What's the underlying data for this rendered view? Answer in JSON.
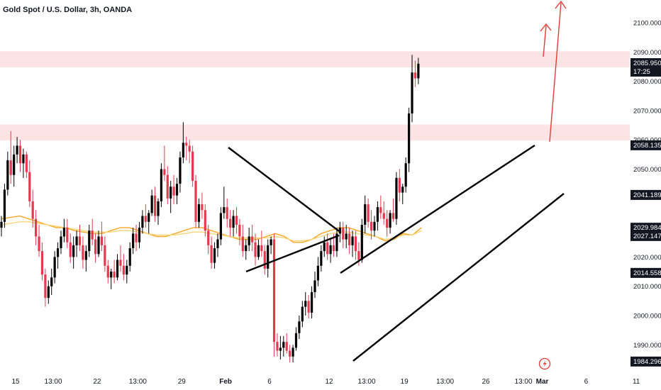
{
  "header": {
    "title": "Gold Spot / U.S. Dollar, 3h, OANDA"
  },
  "chart_data": {
    "type": "candlestick",
    "title": "Gold Spot / U.S. Dollar, 3h, OANDA",
    "ylim": [
      1982,
      2110
    ],
    "y_ticks": [
      {
        "label": "2100.000",
        "value": 2100
      },
      {
        "label": "2090.000",
        "value": 2090
      },
      {
        "label": "2080.000",
        "value": 2080
      },
      {
        "label": "2070.000",
        "value": 2070
      },
      {
        "label": "2060.000",
        "value": 2060
      },
      {
        "label": "2050.000",
        "value": 2050
      },
      {
        "label": "2030.000",
        "value": 2030
      },
      {
        "label": "2020.000",
        "value": 2020
      },
      {
        "label": "2010.000",
        "value": 2010
      },
      {
        "label": "2000.000",
        "value": 2000
      },
      {
        "label": "1990.000",
        "value": 1990
      }
    ],
    "price_tags": [
      {
        "label": "2085.950",
        "sublabel": "17:25",
        "value": 2085.95,
        "style": "current"
      },
      {
        "label": "2058.135",
        "value": 2058.135,
        "style": "dark"
      },
      {
        "label": "2041.189",
        "value": 2041.189,
        "style": "dark"
      },
      {
        "label": "2029.984",
        "value": 2029.984,
        "style": "dark"
      },
      {
        "label": "2027.147",
        "value": 2027.147,
        "style": "dark"
      },
      {
        "label": "2014.558",
        "value": 2014.558,
        "style": "dark"
      },
      {
        "label": "1984.296",
        "value": 1984.296,
        "style": "dark"
      }
    ],
    "x_ticks": [
      {
        "label": "15",
        "t": 0,
        "bold": false
      },
      {
        "label": "13:00",
        "t": 12,
        "bold": false
      },
      {
        "label": "22",
        "t": 26,
        "bold": false
      },
      {
        "label": "13:00",
        "t": 39,
        "bold": false
      },
      {
        "label": "29",
        "t": 53,
        "bold": false
      },
      {
        "label": "Feb",
        "t": 67,
        "bold": true
      },
      {
        "label": "6",
        "t": 81,
        "bold": false
      },
      {
        "label": "12",
        "t": 100,
        "bold": false
      },
      {
        "label": "13:00",
        "t": 112,
        "bold": false
      },
      {
        "label": "19",
        "t": 124,
        "bold": false
      },
      {
        "label": "13:00",
        "t": 137,
        "bold": false
      },
      {
        "label": "26",
        "t": 150,
        "bold": false
      },
      {
        "label": "13:00",
        "t": 162,
        "bold": false
      },
      {
        "label": "Mar",
        "t": 168,
        "bold": true
      },
      {
        "label": "6",
        "t": 182,
        "bold": false
      },
      {
        "label": "11",
        "t": 198,
        "bold": false
      }
    ],
    "candles_ohlc": [
      [
        2030,
        2034,
        2027,
        2032
      ],
      [
        2032,
        2045,
        2030,
        2043
      ],
      [
        2043,
        2056,
        2041,
        2053
      ],
      [
        2053,
        2063,
        2045,
        2048
      ],
      [
        2048,
        2058,
        2044,
        2055
      ],
      [
        2055,
        2061,
        2052,
        2058
      ],
      [
        2058,
        2060,
        2049,
        2052
      ],
      [
        2052,
        2057,
        2047,
        2055
      ],
      [
        2055,
        2056,
        2047,
        2049
      ],
      [
        2049,
        2053,
        2037,
        2039
      ],
      [
        2039,
        2043,
        2030,
        2033
      ],
      [
        2033,
        2036,
        2024,
        2027
      ],
      [
        2027,
        2031,
        2020,
        2022
      ],
      [
        2022,
        2025,
        2012,
        2014
      ],
      [
        2014,
        2016,
        2003,
        2006
      ],
      [
        2006,
        2012,
        2004,
        2010
      ],
      [
        2010,
        2016,
        2007,
        2013
      ],
      [
        2013,
        2022,
        2011,
        2020
      ],
      [
        2020,
        2025,
        2016,
        2023
      ],
      [
        2023,
        2029,
        2021,
        2027
      ],
      [
        2027,
        2033,
        2025,
        2030
      ],
      [
        2030,
        2033,
        2023,
        2025
      ],
      [
        2025,
        2028,
        2018,
        2020
      ],
      [
        2020,
        2027,
        2016,
        2024
      ],
      [
        2024,
        2029,
        2020,
        2027
      ],
      [
        2027,
        2031,
        2022,
        2024
      ],
      [
        2024,
        2027,
        2016,
        2019
      ],
      [
        2019,
        2024,
        2015,
        2022
      ],
      [
        2022,
        2031,
        2020,
        2029
      ],
      [
        2029,
        2033,
        2024,
        2026
      ],
      [
        2026,
        2028,
        2018,
        2021
      ],
      [
        2021,
        2029,
        2020,
        2027
      ],
      [
        2027,
        2032,
        2022,
        2024
      ],
      [
        2024,
        2027,
        2015,
        2017
      ],
      [
        2017,
        2019,
        2011,
        2013
      ],
      [
        2013,
        2016,
        2009,
        2015
      ],
      [
        2015,
        2019,
        2011,
        2013
      ],
      [
        2013,
        2021,
        2012,
        2019
      ],
      [
        2019,
        2024,
        2015,
        2017
      ],
      [
        2017,
        2021,
        2012,
        2014
      ],
      [
        2014,
        2019,
        2011,
        2017
      ],
      [
        2017,
        2025,
        2015,
        2023
      ],
      [
        2023,
        2030,
        2021,
        2028
      ],
      [
        2028,
        2031,
        2022,
        2025
      ],
      [
        2025,
        2032,
        2023,
        2030
      ],
      [
        2030,
        2036,
        2028,
        2034
      ],
      [
        2034,
        2038,
        2030,
        2032
      ],
      [
        2032,
        2036,
        2028,
        2035
      ],
      [
        2035,
        2043,
        2034,
        2041
      ],
      [
        2041,
        2044,
        2032,
        2034
      ],
      [
        2034,
        2040,
        2031,
        2039
      ],
      [
        2039,
        2052,
        2037,
        2050
      ],
      [
        2050,
        2058,
        2046,
        2048
      ],
      [
        2048,
        2051,
        2038,
        2040
      ],
      [
        2040,
        2046,
        2035,
        2044
      ],
      [
        2044,
        2048,
        2038,
        2041
      ],
      [
        2041,
        2047,
        2038,
        2045
      ],
      [
        2045,
        2056,
        2042,
        2054
      ],
      [
        2054,
        2066,
        2052,
        2059
      ],
      [
        2059,
        2061,
        2053,
        2058
      ],
      [
        2058,
        2060,
        2052,
        2056
      ],
      [
        2056,
        2058,
        2044,
        2046
      ],
      [
        2046,
        2048,
        2030,
        2032
      ],
      [
        2032,
        2040,
        2030,
        2038
      ],
      [
        2038,
        2042,
        2033,
        2036
      ],
      [
        2036,
        2038,
        2027,
        2029
      ],
      [
        2029,
        2031,
        2021,
        2024
      ],
      [
        2024,
        2027,
        2016,
        2018
      ],
      [
        2018,
        2025,
        2016,
        2023
      ],
      [
        2023,
        2028,
        2020,
        2026
      ],
      [
        2026,
        2037,
        2024,
        2035
      ],
      [
        2035,
        2044,
        2033,
        2037
      ],
      [
        2037,
        2040,
        2030,
        2033
      ],
      [
        2033,
        2036,
        2027,
        2030
      ],
      [
        2030,
        2036,
        2027,
        2034
      ],
      [
        2034,
        2037,
        2028,
        2031
      ],
      [
        2031,
        2033,
        2024,
        2027
      ],
      [
        2027,
        2031,
        2020,
        2022
      ],
      [
        2022,
        2026,
        2019,
        2024
      ],
      [
        2024,
        2030,
        2022,
        2027
      ],
      [
        2027,
        2031,
        2022,
        2025
      ],
      [
        2025,
        2028,
        2017,
        2020
      ],
      [
        2020,
        2026,
        2019,
        2024
      ],
      [
        2024,
        2029,
        2020,
        2022
      ],
      [
        2022,
        2024,
        2014,
        2016
      ],
      [
        2016,
        2026,
        2013,
        2024
      ],
      [
        2024,
        2027,
        2021,
        2026
      ],
      [
        2026,
        2028,
        1986,
        1991
      ],
      [
        1991,
        1994,
        1986,
        1988
      ],
      [
        1988,
        1993,
        1985,
        1989
      ],
      [
        1989,
        1993,
        1986,
        1991
      ],
      [
        1991,
        1994,
        1987,
        1988
      ],
      [
        1988,
        1990,
        1984,
        1986
      ],
      [
        1986,
        1990,
        1984,
        1989
      ],
      [
        1989,
        1996,
        1988,
        1994
      ],
      [
        1994,
        2000,
        1992,
        1998
      ],
      [
        1998,
        2005,
        1996,
        2003
      ],
      [
        2003,
        2008,
        2000,
        2005
      ],
      [
        2005,
        2007,
        1999,
        2001
      ],
      [
        2001,
        2010,
        1999,
        2008
      ],
      [
        2008,
        2015,
        2006,
        2012
      ],
      [
        2012,
        2020,
        2010,
        2017
      ],
      [
        2017,
        2024,
        2015,
        2022
      ],
      [
        2022,
        2027,
        2020,
        2025
      ],
      [
        2025,
        2028,
        2019,
        2021
      ],
      [
        2021,
        2026,
        2018,
        2024
      ],
      [
        2024,
        2028,
        2020,
        2022
      ],
      [
        2022,
        2030,
        2020,
        2028
      ],
      [
        2028,
        2032,
        2025,
        2030
      ],
      [
        2030,
        2032,
        2023,
        2026
      ],
      [
        2026,
        2031,
        2023,
        2028
      ],
      [
        2028,
        2030,
        2021,
        2024
      ],
      [
        2024,
        2029,
        2020,
        2027
      ],
      [
        2027,
        2029,
        2019,
        2022
      ],
      [
        2022,
        2025,
        2017,
        2019
      ],
      [
        2019,
        2033,
        2018,
        2031
      ],
      [
        2031,
        2041,
        2028,
        2038
      ],
      [
        2038,
        2040,
        2030,
        2032
      ],
      [
        2032,
        2036,
        2026,
        2029
      ],
      [
        2029,
        2034,
        2027,
        2032
      ],
      [
        2032,
        2039,
        2029,
        2037
      ],
      [
        2037,
        2041,
        2033,
        2035
      ],
      [
        2035,
        2039,
        2031,
        2033
      ],
      [
        2033,
        2036,
        2027,
        2030
      ],
      [
        2030,
        2036,
        2028,
        2035
      ],
      [
        2035,
        2040,
        2032,
        2033
      ],
      [
        2033,
        2049,
        2031,
        2047
      ],
      [
        2047,
        2050,
        2039,
        2042
      ],
      [
        2042,
        2045,
        2038,
        2044
      ],
      [
        2044,
        2054,
        2042,
        2052
      ],
      [
        2052,
        2071,
        2049,
        2069
      ],
      [
        2069,
        2089,
        2066,
        2083
      ],
      [
        2083,
        2087,
        2078,
        2081
      ],
      [
        2081,
        2088,
        2079,
        2086
      ]
    ],
    "moving_averages": [
      {
        "color": "#f5a623",
        "values": [
          2033,
          2033.5,
          2034,
          2033,
          2032,
          2031,
          2030,
          2030,
          2029,
          2028.5,
          2028,
          2028,
          2029,
          2030,
          2030,
          2029,
          2028,
          2027,
          2027,
          2028,
          2029,
          2030,
          2030,
          2029,
          2028,
          2027,
          2026,
          2026,
          2026,
          2027,
          2028,
          2027,
          2025,
          2025,
          2026,
          2028,
          2029,
          2030,
          2030,
          2029,
          2028,
          2027,
          2025.5,
          2026,
          2028,
          2027.5,
          2030
        ]
      },
      {
        "color": "#f7d67a",
        "values": [
          2031,
          2031.5,
          2032,
          2032,
          2031.5,
          2031,
          2030.5,
          2030,
          2029.5,
          2029,
          2028.5,
          2028.5,
          2028.5,
          2029,
          2029,
          2028.5,
          2028,
          2027.5,
          2027.5,
          2027.5,
          2028,
          2028.5,
          2028.5,
          2028,
          2027.5,
          2027,
          2026.5,
          2026.5,
          2026.5,
          2026.5,
          2027,
          2026.5,
          2025.5,
          2025.5,
          2026,
          2027,
          2028,
          2028.5,
          2028.5,
          2028,
          2027.5,
          2027,
          2026,
          2026.5,
          2027.5,
          2027.5,
          2029
        ]
      }
    ]
  }
}
